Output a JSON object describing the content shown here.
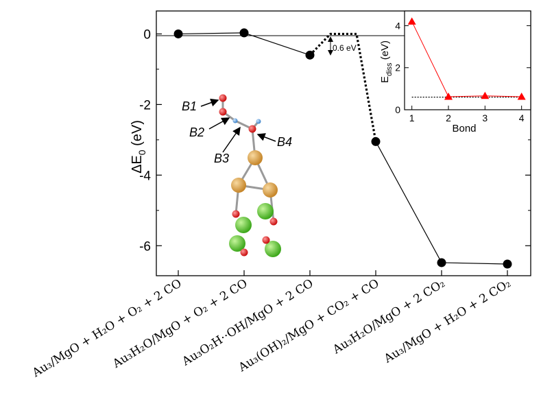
{
  "chart_data": [
    {
      "type": "line",
      "title": "",
      "ylabel": "ΔE",
      "ylabel_sub": "0",
      "ylabel_unit": " (eV)",
      "ylim": [
        -6.85,
        0.65
      ],
      "yticks": [
        0,
        -2,
        -4,
        -6
      ],
      "ytick_labels": [
        "0",
        "-2",
        "-4",
        "-6"
      ],
      "categories": [
        "Au₃/MgO + H₂O + O₂ + 2 CO",
        "Au₃H₂O/MgO + O₂ + 2 CO",
        "Au₃O₂H··OH/MgO + 2 CO",
        "Au₃(OH)₂/MgO + CO₂ + CO",
        "Au₃H₂O/MgO + 2 CO₂",
        "Au₃/MgO + H₂O + 2 CO₂"
      ],
      "series": [
        {
          "values": [
            0.0,
            0.03,
            -0.6,
            -3.05,
            -6.48,
            -6.52
          ],
          "color": "#000000"
        }
      ],
      "barrier": {
        "from_index": 2,
        "to_index": 3,
        "top": 0.0,
        "label": "0.6 eV"
      },
      "grid": false
    },
    {
      "type": "line",
      "title": "",
      "xlabel": "Bond",
      "ylabel": "E",
      "ylabel_sub": "diss",
      "ylabel_unit": " (eV)",
      "x": [
        1,
        2,
        3,
        4
      ],
      "xlim": [
        0.8,
        4.25
      ],
      "ylim": [
        0,
        4.7
      ],
      "yticks": [
        0,
        2,
        4
      ],
      "ytick_labels": [
        "0",
        "2",
        "4"
      ],
      "xtick_labels": [
        "1",
        "2",
        "3",
        "4"
      ],
      "series": [
        {
          "values": [
            4.2,
            0.62,
            0.66,
            0.62
          ],
          "color": "#ff0000"
        }
      ],
      "reference_line": 0.6
    }
  ],
  "structure": {
    "bond_labels": [
      "B1",
      "B2",
      "B3",
      "B4"
    ],
    "colors": {
      "oxygen": "#e8181a",
      "hydrogen": "#5a9fd8",
      "gold": "#d8a040",
      "magnesium": "#66cc33",
      "bond": "#9a9a9a"
    }
  }
}
